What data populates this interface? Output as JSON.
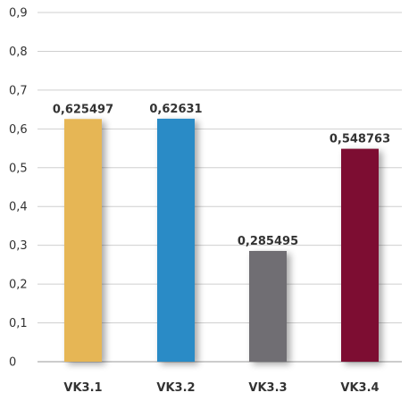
{
  "chart_data": {
    "type": "bar",
    "title": "",
    "xlabel": "",
    "ylabel": "",
    "categories": [
      "VK3.1",
      "VK3.2",
      "VK3.3",
      "VK3.4"
    ],
    "values": [
      0.625497,
      0.62631,
      0.285495,
      0.548763
    ],
    "data_labels": [
      "0,625497",
      "0,62631",
      "0,285495",
      "0,548763"
    ],
    "colors": [
      "#E6B655",
      "#2A8BC6",
      "#6F6E73",
      "#7D1032"
    ],
    "ylim": [
      0,
      0.9
    ],
    "yticks": [
      0,
      0.1,
      0.2,
      0.3,
      0.4,
      0.5,
      0.6,
      0.7,
      0.8,
      0.9
    ],
    "ytick_labels": [
      "0",
      "0,1",
      "0,2",
      "0,3",
      "0,4",
      "0,5",
      "0,6",
      "0,7",
      "0,8",
      "0,9"
    ],
    "grid": true,
    "legend": "none",
    "bar_shadow": true
  }
}
